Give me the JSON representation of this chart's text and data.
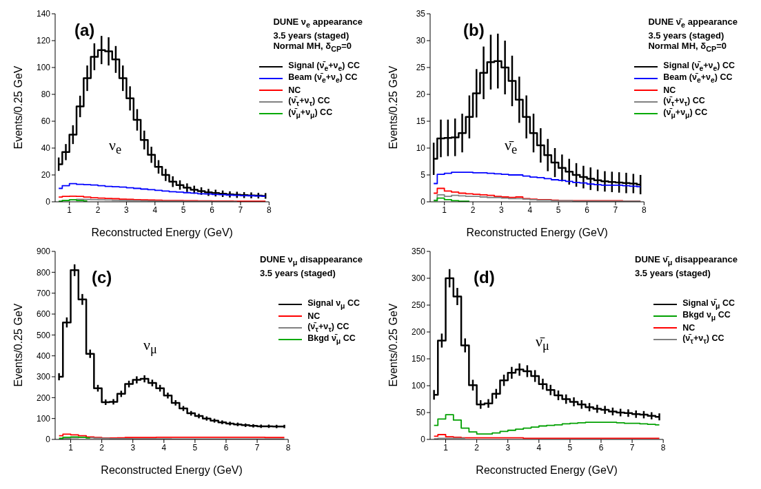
{
  "chart_data": [
    {
      "type": "step",
      "title": "DUNE ν$_{e}$ appearance",
      "subtitle": "3.5 years (staged)\nNormal MH, δ$_{CP}$=0",
      "xlabel": "Reconstructed Energy (GeV)",
      "ylabel": "Events/0.25 GeV",
      "annotations": [
        "(a)",
        "ν$_{e}$"
      ],
      "legend": "top right",
      "marker": "none",
      "x": [
        0.625,
        0.875,
        1.125,
        1.375,
        1.625,
        1.875,
        2.125,
        2.375,
        2.625,
        2.875,
        3.125,
        3.375,
        3.625,
        3.875,
        4.125,
        4.375,
        4.625,
        4.875,
        5.125,
        5.375,
        5.625,
        5.875,
        6.125,
        6.375,
        6.625,
        6.875,
        7.125,
        7.375,
        7.625,
        7.875
      ],
      "xlim": [
        0.5,
        8
      ],
      "xticks": [
        1,
        2,
        3,
        4,
        5,
        6,
        7,
        8
      ],
      "ylim": [
        0,
        140
      ],
      "yticks": [
        0,
        20,
        40,
        60,
        80,
        100,
        120,
        140
      ],
      "series": [
        {
          "name": "Signal (ν̄$_{e}$+ν$_{e}$) CC",
          "color": "#000000",
          "values": [
            28,
            37,
            50,
            71,
            92,
            108,
            113,
            112,
            106,
            92,
            77,
            61,
            46,
            35,
            26,
            20,
            15,
            12.5,
            10.5,
            9,
            8,
            7,
            6.5,
            6,
            5.5,
            5.2,
            5,
            4.8,
            4.6,
            4.4
          ],
          "errors": [
            5,
            6,
            7,
            8,
            9.5,
            10,
            10.5,
            10.5,
            10,
            9.5,
            9,
            8,
            7,
            6,
            5,
            4.5,
            4,
            3.5,
            3.2,
            3,
            2.8,
            2.6,
            2.5,
            2.4,
            2.3,
            2.3,
            2.2,
            2.2,
            2.1,
            2.1
          ]
        },
        {
          "name": "Beam (ν̄$_{e}$+ν$_{e}$) CC",
          "color": "#0000ff",
          "values": [
            10,
            12,
            13.5,
            13,
            12.8,
            12.5,
            12,
            11.5,
            11.2,
            11,
            10.5,
            10,
            9.5,
            9,
            8.5,
            8,
            7.5,
            7.2,
            6.8,
            6.5,
            6,
            5.8,
            5.5,
            5.3,
            5,
            4.8,
            4.6,
            4.5,
            4.3,
            4.2
          ]
        },
        {
          "name": "NC",
          "color": "#ff0000",
          "values": [
            3.5,
            4,
            4.2,
            4,
            3.5,
            3,
            2.8,
            2.5,
            2.3,
            2,
            1.8,
            1.6,
            1.5,
            1.3,
            1.2,
            1,
            1,
            0.9,
            0.8,
            0.8,
            0.7,
            0.7,
            0.6,
            0.6,
            0.6,
            0.5,
            0.5,
            0.5,
            0.5,
            0.5
          ]
        },
        {
          "name": "(ν̄$_{τ}$+ν$_{τ}$) CC",
          "color": "#808080",
          "values": [
            0.5,
            1,
            1.5,
            1.8,
            1.8,
            1.6,
            1.5,
            1.3,
            1.1,
            1,
            0.9,
            0.8,
            0.7,
            0.6,
            0.5,
            0.5,
            0.4,
            0.4,
            0.3,
            0.3,
            0.3,
            0.3,
            0.2,
            0.2,
            0.2,
            0.2,
            null,
            null,
            null,
            null
          ]
        },
        {
          "name": "(ν̄$_{μ}$+ν$_{μ}$) CC",
          "color": "#00aa00",
          "values": [
            0.3,
            1,
            1.5,
            1,
            0.6,
            null,
            null,
            null,
            null,
            null,
            null,
            null,
            null,
            null,
            null,
            null,
            null,
            null,
            null,
            null,
            null,
            null,
            null,
            null,
            null,
            null,
            null,
            null,
            null,
            null
          ]
        }
      ]
    },
    {
      "type": "step",
      "title": "DUNE ν̄$_{e}$ appearance",
      "subtitle": "3.5 years (staged)\nNormal MH, δ$_{CP}$=0",
      "xlabel": "Reconstructed Energy (GeV)",
      "ylabel": "Events/0.25 GeV",
      "annotations": [
        "(b)",
        "ν̄$_{e}$"
      ],
      "legend": "top right",
      "marker": "none",
      "x": [
        0.625,
        0.875,
        1.125,
        1.375,
        1.625,
        1.875,
        2.125,
        2.375,
        2.625,
        2.875,
        3.125,
        3.375,
        3.625,
        3.875,
        4.125,
        4.375,
        4.625,
        4.875,
        5.125,
        5.375,
        5.625,
        5.875,
        6.125,
        6.375,
        6.625,
        6.875,
        7.125,
        7.375,
        7.625,
        7.875
      ],
      "xlim": [
        0.5,
        8
      ],
      "xticks": [
        1,
        2,
        3,
        4,
        5,
        6,
        7,
        8
      ],
      "ylim": [
        0,
        35
      ],
      "yticks": [
        0,
        5,
        10,
        15,
        20,
        25,
        30,
        35
      ],
      "series": [
        {
          "name": "Signal (ν̄$_{e}$+ν$_{e}$) CC",
          "color": "#000000",
          "values": [
            8,
            11.8,
            11.9,
            12,
            12.8,
            15.8,
            20.2,
            24,
            26,
            26.2,
            25,
            22.5,
            19,
            15.8,
            12.8,
            10.5,
            8.7,
            7.3,
            6.3,
            5.6,
            5,
            4.6,
            4.3,
            4,
            3.8,
            3.7,
            3.6,
            3.5,
            3.4,
            3.2
          ],
          "errors": [
            3,
            3.5,
            3.4,
            3.5,
            3.6,
            4,
            4.5,
            4.9,
            5.1,
            5.1,
            5,
            4.7,
            4.3,
            4,
            3.6,
            3.2,
            3,
            2.7,
            2.5,
            2.4,
            2.2,
            2.1,
            2.1,
            2,
            1.9,
            1.9,
            1.9,
            1.9,
            1.8,
            1.8
          ]
        },
        {
          "name": "Beam (ν̄$_{e}$+ν$_{e}$) CC",
          "color": "#0000ff",
          "values": [
            3.4,
            5.1,
            5.3,
            5.5,
            5.5,
            5.5,
            5.4,
            5.4,
            5.3,
            5.2,
            5.1,
            5,
            5,
            4.8,
            4.6,
            4.5,
            4.3,
            4.1,
            4,
            3.8,
            3.6,
            3.5,
            3.3,
            3.2,
            3.1,
            3.1,
            3.1,
            3,
            2.9,
            2.8
          ]
        },
        {
          "name": "NC",
          "color": "#ff0000",
          "values": [
            1.6,
            2.5,
            2,
            1.8,
            1.6,
            1.5,
            1.4,
            1.3,
            1.2,
            1,
            0.9,
            0.8,
            0.9,
            0.6,
            0.5,
            0.4,
            0.4,
            0.3,
            0.2,
            0.2,
            0.2,
            0.2,
            0.2,
            0.2,
            0.2,
            0.2,
            0.2,
            0.1,
            0.1,
            0.1
          ]
        },
        {
          "name": "(ν̄$_{τ}$+ν$_{τ}$) CC",
          "color": "#808080",
          "values": [
            0.3,
            1.3,
            1,
            1.2,
            1.1,
            1,
            1,
            0.9,
            0.8,
            0.8,
            0.7,
            0.6,
            0.6,
            0.5,
            0.4,
            0.3,
            0.3,
            0.2,
            0.2,
            0.2,
            0.1,
            0.1,
            0.1,
            0.1,
            0.1,
            0.1,
            0.1,
            0.1,
            0.1,
            0.1
          ]
        },
        {
          "name": "(ν̄$_{μ}$+ν$_{μ}$) CC",
          "color": "#00aa00",
          "values": [
            0.2,
            0.7,
            0.4,
            0.2,
            0.1,
            0.1,
            null,
            null,
            null,
            null,
            null,
            null,
            null,
            null,
            null,
            null,
            null,
            null,
            null,
            null,
            null,
            null,
            null,
            null,
            null,
            null,
            null,
            null,
            null,
            null
          ]
        }
      ]
    },
    {
      "type": "step",
      "title": "DUNE ν$_{μ}$ disappearance",
      "subtitle": "3.5 years (staged)",
      "xlabel": "Reconstructed Energy (GeV)",
      "ylabel": "Events/0.25 GeV",
      "annotations": [
        "(c)",
        "ν$_{μ}$"
      ],
      "legend": "top right",
      "marker": "none",
      "x": [
        0.625,
        0.875,
        1.125,
        1.375,
        1.625,
        1.875,
        2.125,
        2.375,
        2.625,
        2.875,
        3.125,
        3.375,
        3.625,
        3.875,
        4.125,
        4.375,
        4.625,
        4.875,
        5.125,
        5.375,
        5.625,
        5.875,
        6.125,
        6.375,
        6.625,
        6.875,
        7.125,
        7.375,
        7.625,
        7.875
      ],
      "xlim": [
        0.5,
        8
      ],
      "xticks": [
        1,
        2,
        3,
        4,
        5,
        6,
        7,
        8
      ],
      "ylim": [
        0,
        900
      ],
      "yticks": [
        0,
        100,
        200,
        300,
        400,
        500,
        600,
        700,
        800,
        900
      ],
      "series": [
        {
          "name": "Signal ν$_{μ}$ CC",
          "color": "#000000",
          "values": [
            300,
            560,
            810,
            670,
            410,
            245,
            178,
            180,
            218,
            265,
            285,
            290,
            270,
            245,
            210,
            175,
            148,
            125,
            112,
            100,
            90,
            82,
            76,
            72,
            68,
            65,
            63,
            63,
            62,
            62
          ],
          "errors": [
            17,
            24,
            28,
            26,
            20,
            16,
            13,
            13,
            15,
            16,
            17,
            17,
            16,
            16,
            14,
            13,
            12,
            11,
            11,
            10,
            9.5,
            9,
            8.7,
            8.5,
            8.2,
            8,
            8,
            8,
            7.9,
            7.9
          ]
        },
        {
          "name": "NC",
          "color": "#ff0000",
          "values": [
            18,
            25,
            22,
            18,
            12,
            9,
            7,
            7,
            8,
            9,
            9,
            9,
            9,
            10,
            10,
            10,
            10,
            10,
            10,
            10,
            10,
            10,
            10,
            10,
            10,
            10,
            10,
            9,
            9,
            9
          ]
        },
        {
          "name": "(ν̄$_{τ}$+ν$_{τ}$) CC",
          "color": "#808080",
          "values": [
            2,
            5,
            8,
            10,
            8,
            6,
            5,
            4,
            4,
            4,
            3,
            3,
            3,
            3,
            3,
            2,
            2,
            2,
            2,
            2,
            2,
            2,
            2,
            2,
            2,
            2,
            2,
            2,
            2,
            2
          ]
        },
        {
          "name": "Bkgd ν̄$_{μ}$ CC",
          "color": "#00aa00",
          "values": [
            5,
            10,
            12,
            10,
            7,
            null,
            null,
            null,
            null,
            null,
            null,
            null,
            null,
            null,
            null,
            null,
            null,
            null,
            null,
            null,
            null,
            null,
            null,
            null,
            null,
            null,
            null,
            null,
            null,
            null
          ]
        }
      ]
    },
    {
      "type": "step",
      "title": "DUNE ν̄$_{μ}$ disappearance",
      "subtitle": "3.5 years (staged)",
      "xlabel": "Reconstructed Energy (GeV)",
      "ylabel": "Events/0.25 GeV",
      "annotations": [
        "(d)",
        "ν̄$_{μ}$"
      ],
      "legend": "top right",
      "marker": "none",
      "x": [
        0.625,
        0.875,
        1.125,
        1.375,
        1.625,
        1.875,
        2.125,
        2.375,
        2.625,
        2.875,
        3.125,
        3.375,
        3.625,
        3.875,
        4.125,
        4.375,
        4.625,
        4.875,
        5.125,
        5.375,
        5.625,
        5.875,
        6.125,
        6.375,
        6.625,
        6.875,
        7.125,
        7.375,
        7.625,
        7.875
      ],
      "xlim": [
        0.5,
        8
      ],
      "xticks": [
        1,
        2,
        3,
        4,
        5,
        6,
        7,
        8
      ],
      "ylim": [
        0,
        350
      ],
      "yticks": [
        0,
        50,
        100,
        150,
        200,
        250,
        300,
        350
      ],
      "series": [
        {
          "name": "Signal ν̄$_{μ}$ CC",
          "color": "#000000",
          "values": [
            83,
            184,
            300,
            266,
            175,
            101,
            65,
            67,
            85,
            110,
            124,
            130,
            127,
            118,
            103,
            92,
            82,
            75,
            70,
            65,
            60,
            57,
            55,
            52,
            50,
            49,
            47,
            46,
            44,
            42
          ],
          "errors": [
            9,
            13,
            17,
            16,
            13,
            10,
            8,
            8,
            9,
            10.5,
            11,
            11.5,
            11,
            11,
            10,
            9.6,
            9,
            8.7,
            8.4,
            8,
            7.7,
            7.5,
            7.4,
            7.2,
            7,
            7,
            6.9,
            6.8,
            6.6,
            6.5
          ]
        },
        {
          "name": "Bkgd ν$_{μ}$ CC",
          "color": "#00a000",
          "values": [
            26,
            38,
            46,
            36,
            21,
            14,
            10,
            10,
            12,
            15,
            17,
            19,
            21,
            23,
            25,
            26,
            27,
            29,
            30,
            31,
            32,
            32,
            32,
            32,
            31,
            30,
            30,
            29,
            28,
            27
          ]
        },
        {
          "name": "NC",
          "color": "#ff0000",
          "values": [
            6,
            9,
            5,
            4,
            3,
            3,
            3,
            3,
            3,
            3,
            3,
            3,
            2,
            2,
            2,
            2,
            2,
            2,
            2,
            2,
            2,
            2,
            2,
            2,
            2,
            2,
            2,
            2,
            2,
            2
          ]
        },
        {
          "name": "(ν̄$_{τ}$+ν$_{τ}$) CC",
          "color": "#808080",
          "values": [
            1,
            2,
            2,
            2,
            2,
            null,
            null,
            null,
            null,
            null,
            null,
            null,
            null,
            null,
            null,
            null,
            null,
            null,
            null,
            null,
            null,
            null,
            null,
            null,
            null,
            null,
            null,
            null,
            null,
            null
          ]
        }
      ]
    }
  ]
}
